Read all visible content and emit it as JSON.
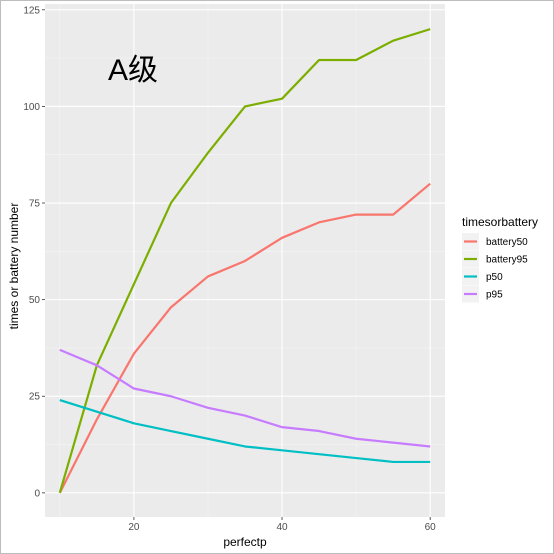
{
  "chart_data": {
    "type": "line",
    "title": "",
    "annotation": "A级",
    "xlabel": "perfectp",
    "ylabel": "times or battery number",
    "xlim": [
      8,
      62
    ],
    "ylim": [
      -6.25,
      126.5
    ],
    "x_ticks": [
      20,
      40,
      60
    ],
    "y_ticks": [
      0,
      25,
      50,
      75,
      100,
      125
    ],
    "grid": true,
    "legend_title": "timesorbattery",
    "legend_position": "right",
    "series": [
      {
        "name": "battery50",
        "color": "#F8766D",
        "x": [
          10,
          15,
          20,
          25,
          30,
          35,
          40,
          45,
          50,
          55,
          60
        ],
        "y": [
          0,
          19,
          36,
          48,
          56,
          60,
          66,
          70,
          72,
          72,
          80
        ]
      },
      {
        "name": "battery95",
        "color": "#7CAE00",
        "x": [
          10,
          15,
          20,
          25,
          30,
          35,
          40,
          45,
          50,
          55,
          60
        ],
        "y": [
          0,
          33,
          54,
          75,
          88,
          100,
          102,
          112,
          112,
          117,
          120
        ]
      },
      {
        "name": "p50",
        "color": "#00BFC4",
        "x": [
          10,
          15,
          20,
          25,
          30,
          35,
          40,
          45,
          50,
          55,
          60
        ],
        "y": [
          24,
          21,
          18,
          16,
          14,
          12,
          11,
          10,
          9,
          8,
          8
        ]
      },
      {
        "name": "p95",
        "color": "#C77CFF",
        "x": [
          10,
          15,
          20,
          25,
          30,
          35,
          40,
          45,
          50,
          55,
          60
        ],
        "y": [
          37,
          33,
          27,
          25,
          22,
          20,
          17,
          16,
          14,
          13,
          12
        ]
      }
    ]
  }
}
